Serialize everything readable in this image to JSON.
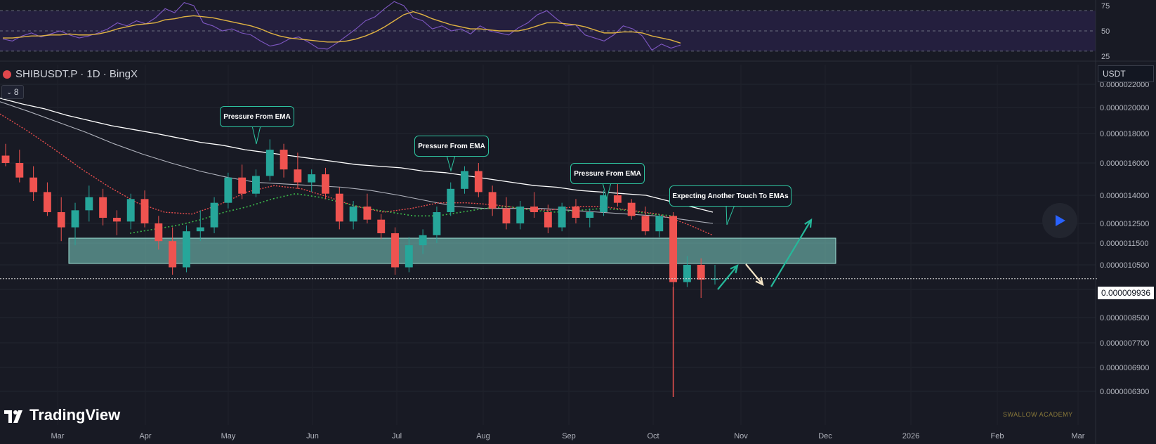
{
  "header": {
    "symbol_title": "SHIBUSDT.P · 1D · BingX",
    "indicator_count": "8",
    "currency": "USDT",
    "watermark": "SWALLOW ACADEMY",
    "logo_text": "TradingView"
  },
  "colors": {
    "background": "#181a24",
    "bull": "#26a69a",
    "bear": "#ef5350",
    "ema_long": "#ffffff",
    "ema_mid": "#b0b3bd",
    "ema_fast": "#e84d4d",
    "ema_green": "#3bb84a",
    "rsi": "#7e57c2",
    "rsi_ma": "#e0b342",
    "zone": "#7fd3c6",
    "arrow_green": "#25b89a",
    "arrow_white": "#f5e6c8"
  },
  "chart_data": [
    {
      "type": "line",
      "name": "RSI panel",
      "y_ticks": [
        "75",
        "50",
        "25"
      ],
      "ylim": [
        25,
        75
      ],
      "levels": [
        70,
        50,
        30
      ],
      "series": [
        {
          "values": [
            42,
            40,
            45,
            48,
            44,
            47,
            50,
            46,
            43,
            45,
            48,
            52,
            58,
            55,
            60,
            57,
            63,
            72,
            68,
            78,
            75,
            58,
            55,
            50,
            52,
            48,
            46,
            40,
            35,
            37,
            42,
            44,
            39,
            33,
            32,
            38,
            45,
            52,
            60,
            64,
            72,
            79,
            75,
            63,
            60,
            52,
            55,
            50,
            52,
            47,
            55,
            50,
            48,
            46,
            53,
            58,
            66,
            70,
            62,
            55,
            56,
            46,
            43,
            40,
            46,
            55,
            52,
            45,
            31,
            37,
            33,
            36
          ]
        },
        {
          "values": [
            43,
            43,
            44,
            45,
            45,
            46,
            46,
            47,
            46,
            46,
            47,
            49,
            52,
            54,
            56,
            57,
            58,
            61,
            62,
            64,
            65,
            64,
            63,
            61,
            59,
            57,
            55,
            52,
            48,
            45,
            43,
            42,
            41,
            40,
            39,
            39,
            40,
            42,
            45,
            49,
            54,
            60,
            66,
            69,
            66,
            62,
            59,
            56,
            54,
            52,
            52,
            51,
            50,
            50,
            50,
            52,
            55,
            58,
            58,
            57,
            56,
            54,
            51,
            48,
            48,
            49,
            49,
            48,
            45,
            43,
            41,
            38
          ]
        }
      ]
    },
    {
      "type": "candlestick",
      "name": "SHIBUSDT.P price",
      "ylim": [
        6.1e-06,
        2.3e-05
      ],
      "y_ticks": [
        "0.0000022000",
        "0.0000020000",
        "0.0000018000",
        "0.0000016000",
        "0.0000014000",
        "0.0000012500",
        "0.0000011500",
        "0.0000010500",
        "0.0000009500",
        "0.0000008500",
        "0.0000007700",
        "0.0000006900",
        "0.0000006300"
      ],
      "x_ticks": [
        "Mar",
        "Apr",
        "May",
        "Jun",
        "Jul",
        "Aug",
        "Sep",
        "Oct",
        "Nov",
        "Dec",
        "2026",
        "Feb",
        "Mar"
      ],
      "current_price": "0.000009936",
      "ohlc": [
        [
          16.5,
          17.3,
          15.8,
          16.0
        ],
        [
          16.0,
          16.9,
          14.8,
          15.1
        ],
        [
          15.1,
          15.8,
          13.7,
          14.2
        ],
        [
          14.2,
          14.8,
          12.9,
          13.1
        ],
        [
          13.1,
          13.9,
          11.6,
          12.3
        ],
        [
          12.3,
          13.6,
          11.4,
          13.2
        ],
        [
          13.2,
          14.6,
          12.6,
          13.9
        ],
        [
          13.9,
          14.4,
          12.4,
          12.8
        ],
        [
          12.8,
          13.2,
          11.9,
          12.6
        ],
        [
          12.6,
          14.1,
          12.2,
          13.8
        ],
        [
          13.8,
          14.3,
          12.3,
          12.5
        ],
        [
          12.5,
          12.9,
          11.2,
          11.6
        ],
        [
          11.6,
          12.3,
          10.1,
          10.4
        ],
        [
          10.4,
          12.4,
          10.2,
          12.1
        ],
        [
          12.1,
          13.2,
          11.6,
          12.3
        ],
        [
          12.3,
          13.9,
          12.0,
          13.6
        ],
        [
          13.6,
          15.4,
          13.3,
          15.1
        ],
        [
          15.1,
          15.9,
          13.8,
          14.1
        ],
        [
          14.1,
          15.6,
          13.9,
          15.2
        ],
        [
          15.2,
          17.6,
          14.9,
          16.9
        ],
        [
          16.9,
          17.3,
          15.1,
          15.6
        ],
        [
          15.6,
          16.7,
          14.4,
          14.8
        ],
        [
          14.8,
          15.6,
          14.2,
          15.3
        ],
        [
          15.3,
          15.7,
          13.8,
          14.1
        ],
        [
          14.1,
          14.5,
          12.2,
          12.6
        ],
        [
          12.6,
          13.7,
          12.2,
          13.4
        ],
        [
          13.4,
          14.1,
          12.5,
          12.7
        ],
        [
          12.7,
          13.0,
          11.7,
          12.0
        ],
        [
          12.0,
          12.3,
          10.1,
          10.4
        ],
        [
          10.4,
          11.8,
          10.2,
          11.4
        ],
        [
          11.4,
          12.2,
          11.0,
          11.9
        ],
        [
          11.9,
          13.4,
          11.5,
          13.1
        ],
        [
          13.1,
          14.8,
          12.9,
          14.4
        ],
        [
          14.4,
          15.8,
          14.1,
          15.5
        ],
        [
          15.5,
          16.0,
          13.9,
          14.2
        ],
        [
          14.2,
          14.6,
          12.9,
          13.3
        ],
        [
          13.3,
          13.9,
          12.2,
          12.5
        ],
        [
          12.5,
          13.7,
          12.2,
          13.4
        ],
        [
          13.4,
          14.2,
          12.8,
          13.1
        ],
        [
          13.1,
          13.5,
          12.0,
          12.3
        ],
        [
          12.3,
          13.6,
          12.1,
          13.4
        ],
        [
          13.4,
          13.8,
          12.5,
          12.8
        ],
        [
          12.8,
          13.3,
          12.3,
          13.1
        ],
        [
          13.1,
          14.3,
          12.9,
          14.0
        ],
        [
          14.0,
          15.0,
          13.4,
          13.6
        ],
        [
          13.6,
          13.8,
          12.7,
          12.9
        ],
        [
          12.9,
          13.4,
          11.9,
          12.1
        ],
        [
          12.1,
          13.0,
          11.8,
          12.9
        ],
        [
          12.9,
          13.1,
          9.3,
          9.8
        ],
        [
          9.8,
          10.9,
          9.6,
          10.5
        ],
        [
          10.5,
          10.8,
          9.2,
          9.9
        ],
        [
          9.9,
          10.5,
          9.7,
          9.94
        ]
      ],
      "ema_long": [
        20.8,
        20.3,
        19.9,
        19.4,
        19.0,
        18.6,
        18.3,
        18.0,
        17.7,
        17.4,
        17.2,
        16.9,
        16.7,
        16.5,
        16.3,
        16.1,
        15.9,
        15.8,
        15.7,
        15.5,
        15.4,
        15.2,
        15.0,
        14.8,
        14.6,
        14.5,
        14.3,
        14.2,
        14.1,
        14.0,
        13.7,
        13.4,
        13.1
      ],
      "ema_mid": [
        20.5,
        19.7,
        18.9,
        18.1,
        17.3,
        16.6,
        16.0,
        15.5,
        15.1,
        14.8,
        14.7,
        14.6,
        14.5,
        14.3,
        14.0,
        13.7,
        13.4,
        13.3,
        13.3,
        13.3,
        13.2,
        13.1,
        13.0,
        12.9,
        12.7,
        12.5
      ],
      "ema_fast": [
        19.5,
        18.2,
        16.9,
        15.6,
        14.5,
        13.6,
        13.1,
        13.0,
        13.5,
        14.2,
        14.6,
        14.4,
        13.9,
        13.4,
        13.1,
        13.3,
        13.6,
        13.6,
        13.5,
        13.3,
        13.2,
        13.4,
        13.4,
        13.2,
        13.0,
        12.5,
        11.9
      ],
      "ema_green": [
        12.0,
        12.2,
        12.4,
        12.7,
        13.1,
        13.4,
        13.8,
        14.1,
        13.9,
        13.6,
        13.3,
        13.1,
        12.9,
        12.9,
        13.1,
        13.3,
        13.4,
        13.2,
        13.1,
        13.2,
        13.3,
        13.2,
        13.0,
        12.9
      ],
      "zone": [
        11.2,
        12.4
      ],
      "annotations": [
        "Pressure From EMA",
        "Pressure From EMA",
        "Pressure From EMA",
        "Expecting Another Touch To EMAs"
      ]
    }
  ]
}
